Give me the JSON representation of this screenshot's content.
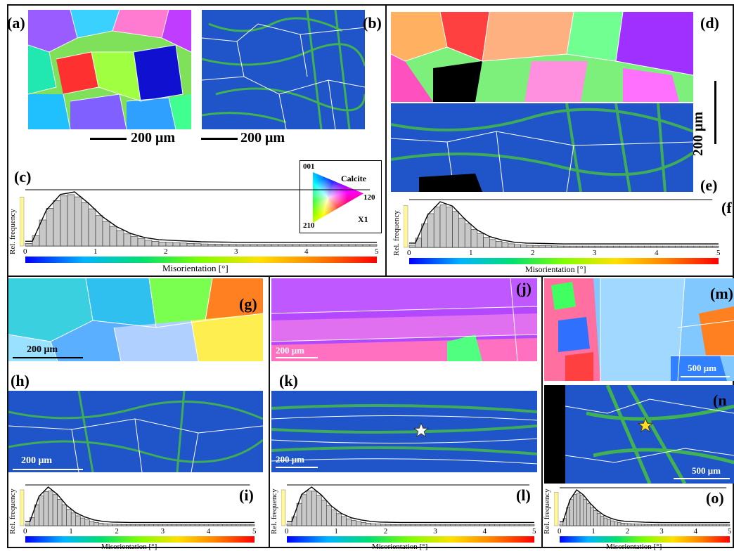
{
  "panels": {
    "a": "(a)",
    "b": "(b)",
    "c": "(c)",
    "d": "(d)",
    "e": "(e)",
    "f": "(f",
    "g": "(g)",
    "h": "(h)",
    "i": "(i)",
    "j": "(j)",
    "k": "(k)",
    "l": "(l)",
    "m": "(m)",
    "n": "(n",
    "o": "(o)"
  },
  "scalebars": {
    "a": "200 μm",
    "b": "200 μm",
    "d": "200 μm",
    "g": "200 μm",
    "h": "200 μm",
    "j": "200 μm",
    "k": "200 μm",
    "m": "500 μm",
    "n": "500 μm"
  },
  "legend": {
    "pole_001": "001",
    "pole_120": "120",
    "pole_210": "210",
    "mineral": "Calcite",
    "direction": "X1"
  },
  "axis": {
    "ylabel": "Rel. frequency",
    "xlabel": "Misorientation [°]",
    "ticks": [
      "0",
      "1",
      "2",
      "3",
      "4",
      "5"
    ]
  },
  "colors": {
    "frame": "#111111",
    "bar_fill": "#c8c8c8",
    "kam_background": "#1f55c8",
    "kam_high": "#4cd12a",
    "boundary": "#ffffff",
    "colorbar": [
      "#0000ff",
      "#00b4ff",
      "#00e070",
      "#80ff00",
      "#ffe000",
      "#ff8000",
      "#ff0000"
    ]
  },
  "chart_data": [
    {
      "panel": "c",
      "type": "bar",
      "x": [
        0.1,
        0.3,
        0.5,
        0.7,
        0.9,
        1.1,
        1.3,
        1.5,
        1.7,
        1.9,
        2.5,
        3.5,
        4.5
      ],
      "values": [
        0.05,
        0.65,
        0.95,
        1.0,
        0.78,
        0.52,
        0.33,
        0.2,
        0.12,
        0.08,
        0.04,
        0.02,
        0.01
      ],
      "xlim": [
        0,
        5
      ],
      "xlabel": "Misorientation [°]",
      "ylabel": "Rel. frequency"
    },
    {
      "panel": "f",
      "type": "bar",
      "x": [
        0.1,
        0.3,
        0.5,
        0.7,
        0.9,
        1.1,
        1.3,
        1.5,
        1.7,
        1.9,
        2.5,
        3.5,
        4.5
      ],
      "values": [
        0.05,
        0.7,
        1.0,
        0.9,
        0.6,
        0.35,
        0.2,
        0.12,
        0.07,
        0.05,
        0.03,
        0.015,
        0.01
      ],
      "xlim": [
        0,
        5
      ],
      "xlabel": "Misorientation [°]",
      "ylabel": "Rel. frequency"
    },
    {
      "panel": "i",
      "type": "bar",
      "x": [
        0.1,
        0.3,
        0.5,
        0.7,
        0.9,
        1.1,
        1.3,
        1.5,
        1.7,
        1.9,
        2.5,
        3.5,
        4.5
      ],
      "values": [
        0.05,
        0.75,
        1.0,
        0.8,
        0.5,
        0.3,
        0.18,
        0.1,
        0.06,
        0.04,
        0.025,
        0.012,
        0.008
      ],
      "xlim": [
        0,
        5
      ],
      "xlabel": "Misorientation [°]",
      "ylabel": "Rel. frequency"
    },
    {
      "panel": "l",
      "type": "bar",
      "x": [
        0.1,
        0.3,
        0.5,
        0.7,
        0.9,
        1.1,
        1.3,
        1.5,
        1.7,
        1.9,
        2.5,
        3.5,
        4.5
      ],
      "values": [
        0.05,
        0.8,
        1.0,
        0.78,
        0.48,
        0.28,
        0.16,
        0.1,
        0.06,
        0.04,
        0.025,
        0.012,
        0.008
      ],
      "xlim": [
        0,
        5
      ],
      "xlabel": "Misorientation [°]",
      "ylabel": "Rel. frequency"
    },
    {
      "panel": "o",
      "type": "bar",
      "x": [
        0.1,
        0.3,
        0.5,
        0.7,
        0.9,
        1.1,
        1.3,
        1.5,
        1.7,
        1.9,
        2.5,
        3.5,
        4.5
      ],
      "values": [
        0.05,
        0.7,
        1.0,
        0.85,
        0.6,
        0.4,
        0.25,
        0.16,
        0.1,
        0.07,
        0.04,
        0.02,
        0.01
      ],
      "xlim": [
        0,
        5
      ],
      "xlabel": "Misorientation [°]",
      "ylabel": "Rel. frequency"
    }
  ]
}
